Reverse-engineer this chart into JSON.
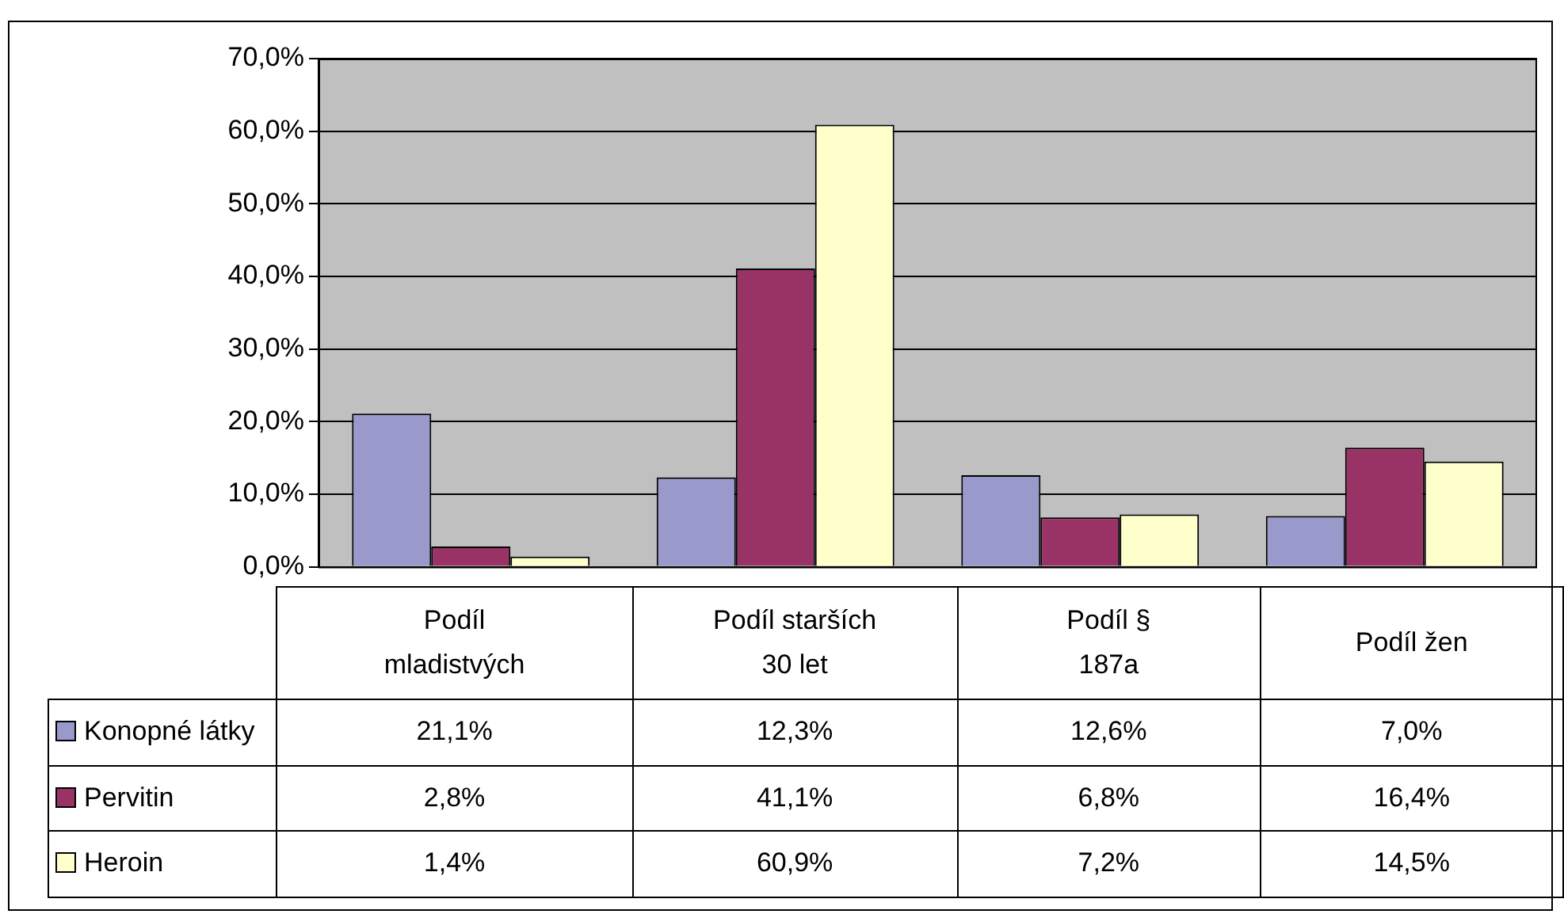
{
  "chart_data": {
    "type": "bar",
    "categories": [
      "Podíl mladistvých",
      "Podíl starších 30 let",
      "Podíl § 187a",
      "Podíl žen"
    ],
    "series": [
      {
        "name": "Konopné látky",
        "color": "#9999cc",
        "values": [
          21.1,
          12.3,
          12.6,
          7.0
        ],
        "value_labels": [
          "21,1%",
          "12,3%",
          "12,6%",
          "7,0%"
        ]
      },
      {
        "name": "Pervitin",
        "color": "#993366",
        "values": [
          2.8,
          41.1,
          6.8,
          16.4
        ],
        "value_labels": [
          "2,8%",
          "41,1%",
          "6,8%",
          "16,4%"
        ]
      },
      {
        "name": "Heroin",
        "color": "#ffffcc",
        "values": [
          1.4,
          60.9,
          7.2,
          14.5
        ],
        "value_labels": [
          "1,4%",
          "60,9%",
          "7,2%",
          "14,5%"
        ]
      }
    ],
    "ylim": [
      0,
      70
    ],
    "yticks": [
      {
        "value": 0,
        "label": "0,0%"
      },
      {
        "value": 10,
        "label": "10,0%"
      },
      {
        "value": 20,
        "label": "20,0%"
      },
      {
        "value": 30,
        "label": "30,0%"
      },
      {
        "value": 40,
        "label": "40,0%"
      },
      {
        "value": 50,
        "label": "50,0%"
      },
      {
        "value": 60,
        "label": "60,0%"
      },
      {
        "value": 70,
        "label": "70,0%"
      }
    ],
    "grid": "y",
    "legend": "bottom left"
  }
}
